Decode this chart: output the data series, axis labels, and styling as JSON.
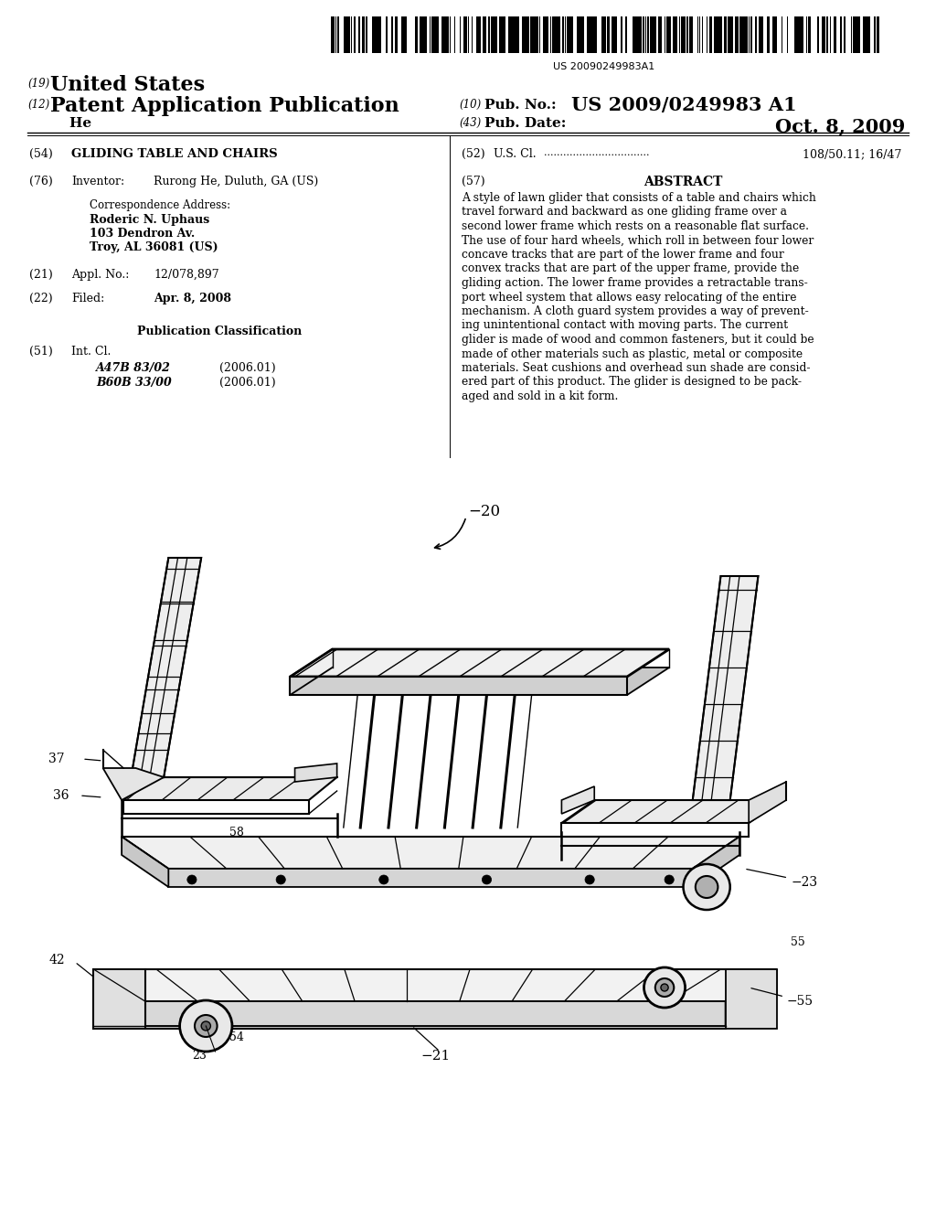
{
  "background_color": "#ffffff",
  "barcode_text": "US 20090249983A1",
  "header": {
    "num19": "(19)",
    "country": "United States",
    "num12": "(12)",
    "pub_type": "Patent Application Publication",
    "inventor_last": "    He",
    "num10_label": "(10)",
    "pub_no_label": "Pub. No.:",
    "pub_no": "US 2009/0249983 A1",
    "num43_label": "(43)",
    "pub_date_label": "Pub. Date:",
    "pub_date": "Oct. 8, 2009"
  },
  "left_col": {
    "num54": "(54)",
    "title": "GLIDING TABLE AND CHAIRS",
    "num76": "(76)",
    "inventor_label": "Inventor:",
    "inventor": "Rurong He, Duluth, GA (US)",
    "corr_address": "Correspondence Address:",
    "corr_name": "Roderic N. Uphaus",
    "corr_street": "103 Dendron Av.",
    "corr_city": "Troy, AL 36081 (US)",
    "num21": "(21)",
    "appl_label": "Appl. No.:",
    "appl_no": "12/078,897",
    "num22": "(22)",
    "filed_label": "Filed:",
    "filed_date": "Apr. 8, 2008",
    "pub_class_header": "Publication Classification",
    "num51": "(51)",
    "int_cl_label": "Int. Cl.",
    "class1_code": "A47B 83/02",
    "class1_year": "(2006.01)",
    "class2_code": "B60B 33/00",
    "class2_year": "(2006.01)"
  },
  "right_col": {
    "num52": "(52)",
    "us_cl_label": "U.S. Cl.",
    "us_cl_dots": ".................................",
    "us_cl_value": "108/50.11; 16/47",
    "num57": "(57)",
    "abstract_header": "ABSTRACT",
    "abstract_lines": [
      "A style of lawn glider that consists of a table and chairs which",
      "travel forward and backward as one gliding frame over a",
      "second lower frame which rests on a reasonable flat surface.",
      "The use of four hard wheels, which roll in between four lower",
      "concave tracks that are part of the lower frame and four",
      "convex tracks that are part of the upper frame, provide the",
      "gliding action. The lower frame provides a retractable trans-",
      "port wheel system that allows easy relocating of the entire",
      "mechanism. A cloth guard system provides a way of prevent-",
      "ing unintentional contact with moving parts. The current",
      "glider is made of wood and common fasteners, but it could be",
      "made of other materials such as plastic, metal or composite",
      "materials. Seat cushions and overhead sun shade are consid-",
      "ered part of this product. The glider is designed to be pack-",
      "aged and sold in a kit form."
    ]
  }
}
